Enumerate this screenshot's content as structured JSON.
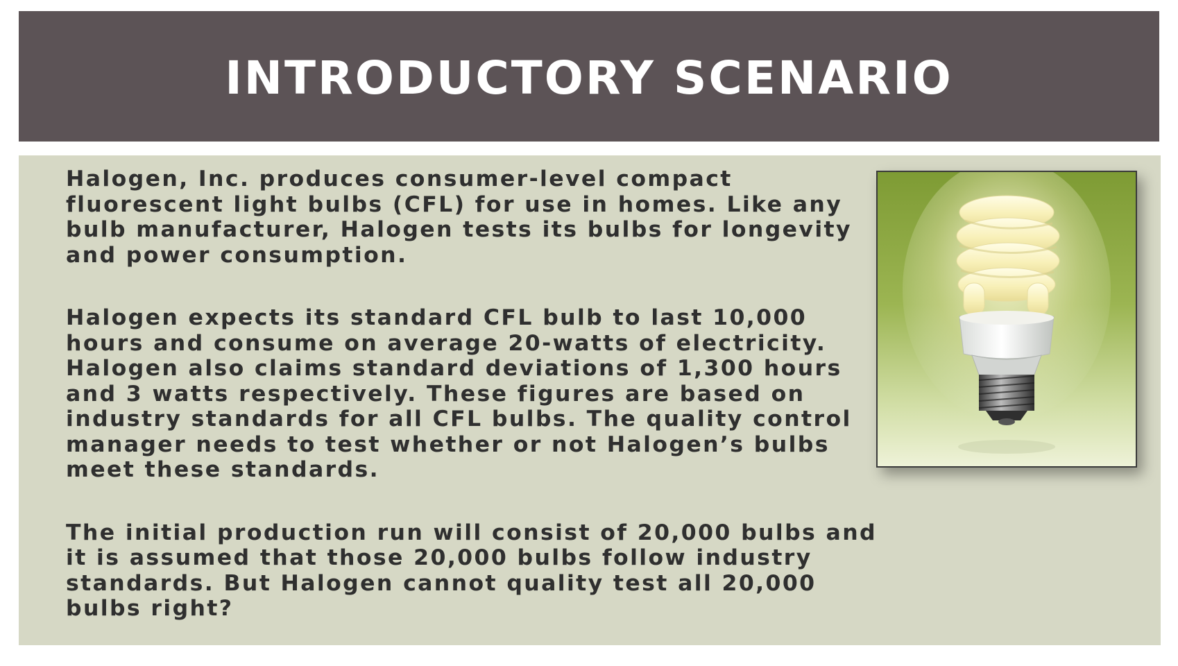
{
  "slide": {
    "title": "INTRODUCTORY SCENARIO"
  },
  "body": {
    "paragraph_1": [
      "Halogen, Inc. produces consumer-level compact",
      "fluorescent light bulbs (CFL) for use in homes. Like any",
      "bulb manufacturer, Halogen tests its bulbs for longevity",
      "and power consumption."
    ],
    "paragraph_2": {
      "line_1": "Halogen expects its standard CFL bulb to last 10,000",
      "line_2": "hours and consume on average 20-watts of electricity.",
      "line_3": "Halogen also claims standard deviations of 1,300 hours",
      "line_4": "and 3 watts respectively. These figures are based on",
      "line_5_pre": "industry standards for ",
      "line_5_bold": "all CFL bulbs",
      "line_5_post": ". The quality control",
      "line_6": "manager needs to test whether or not Halogen’s bulbs",
      "line_7": "meet these standards."
    },
    "paragraph_3": [
      "The initial production run will consist of 20,000 bulbs and",
      "it is assumed that those 20,000 bulbs follow industry",
      "standards. But Halogen cannot quality test all 20,000",
      "bulbs right?"
    ]
  },
  "image": {
    "subject": "cfl-light-bulb-photo"
  },
  "colors": {
    "header_background": "#5c5356",
    "title_text": "#ffffff",
    "panel_background": "#d6d8c5",
    "body_text": "#2f2f2f"
  }
}
